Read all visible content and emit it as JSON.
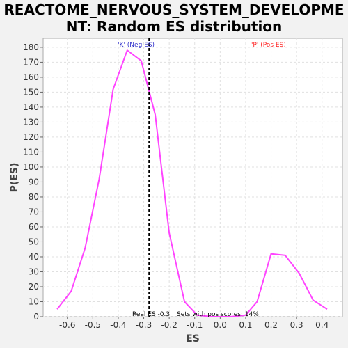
{
  "title": "REACTOME_NERVOUS_SYSTEM_DEVELOPMENT: Random ES distribution",
  "title_lines": [
    "REACTOME_NERVOUS_SYSTEM_DEVELOPME",
    "NT: Random ES distribution"
  ],
  "chart_data": {
    "type": "line",
    "title": "REACTOME_NERVOUS_SYSTEM_DEVELOPMENT: Random ES distribution",
    "xlabel": "ES",
    "ylabel": "P(ES)",
    "xlim": [
      -0.695,
      0.48
    ],
    "ylim": [
      0,
      186
    ],
    "xticks": [
      -0.6,
      -0.5,
      -0.4,
      -0.3,
      -0.2,
      -0.1,
      0.0,
      0.1,
      0.2,
      0.3,
      0.4
    ],
    "xtick_labels": [
      "-0.6",
      "-0.5",
      "-0.4",
      "-0.3",
      "-0.2",
      "-0.1",
      "0.0",
      "0.1",
      "0.2",
      "0.3",
      "0.4"
    ],
    "yticks": [
      0,
      10,
      20,
      30,
      40,
      50,
      60,
      70,
      80,
      90,
      100,
      110,
      120,
      130,
      140,
      150,
      160,
      170,
      180
    ],
    "grid": true,
    "series": [
      {
        "color": "#ff44ff",
        "x": [
          -0.64,
          -0.585,
          -0.53,
          -0.475,
          -0.42,
          -0.365,
          -0.31,
          -0.255,
          -0.2,
          -0.14,
          -0.09,
          -0.03,
          0.04,
          0.1,
          0.145,
          0.2,
          0.255,
          0.31,
          0.365,
          0.42
        ],
        "y": [
          5,
          17,
          46,
          92,
          152,
          178,
          171,
          135,
          56,
          10,
          1,
          0,
          0,
          1,
          10,
          42,
          41,
          29,
          11,
          5
        ]
      }
    ],
    "vline": {
      "x": -0.279,
      "style": "dashed",
      "color": "#000000"
    },
    "annotations": {
      "neg_label": "'K' (Neg ES)",
      "pos_label": "'P' (Pos ES)",
      "neg_color": "#3333cc",
      "pos_color": "#ff2222",
      "real_es": "Real ES -0.3",
      "pos_scores": "Sets with pos scores: 14%"
    }
  }
}
